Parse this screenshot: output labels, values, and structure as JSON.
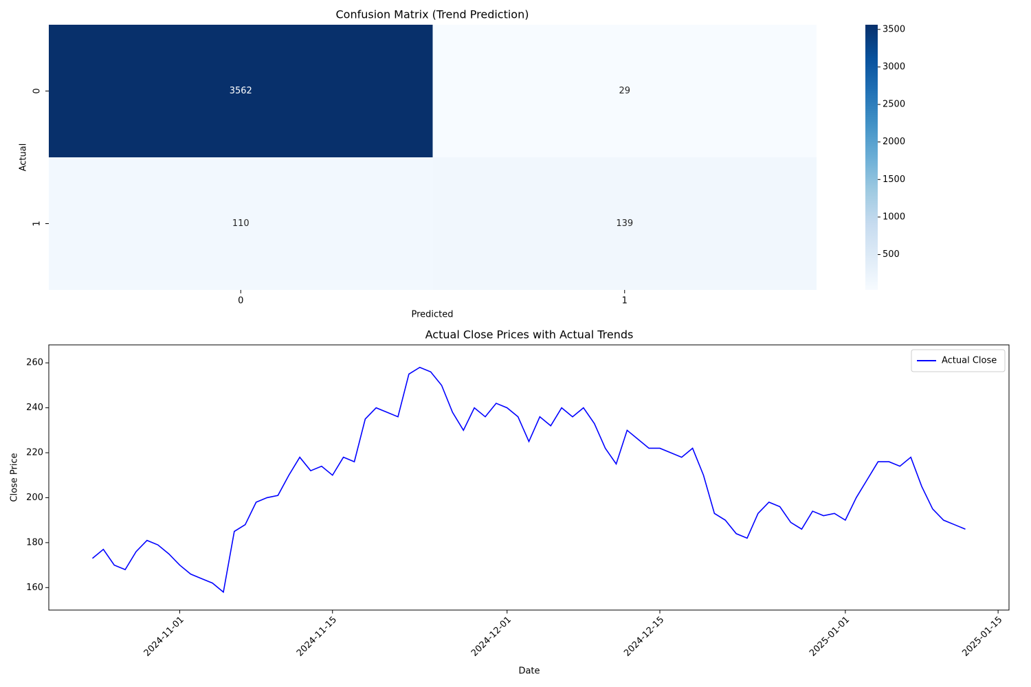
{
  "chart_data": [
    {
      "type": "heatmap",
      "title": "Confusion Matrix (Trend Prediction)",
      "xlabel": "Predicted",
      "ylabel": "Actual",
      "x_categories": [
        "0",
        "1"
      ],
      "y_categories": [
        "0",
        "1"
      ],
      "values": [
        [
          3562,
          29
        ],
        [
          110,
          139
        ]
      ],
      "colormap": "Blues",
      "clim": [
        29,
        3562
      ],
      "cticks": [
        500,
        1000,
        1500,
        2000,
        2500,
        3000,
        3500
      ]
    },
    {
      "type": "line",
      "title": "Actual Close Prices with Actual Trends",
      "xlabel": "Date",
      "ylabel": "Close Price",
      "x": [
        "2024-10-24",
        "2024-10-25",
        "2024-10-26",
        "2024-10-27",
        "2024-10-28",
        "2024-10-29",
        "2024-10-30",
        "2024-10-31",
        "2024-11-01",
        "2024-11-02",
        "2024-11-03",
        "2024-11-04",
        "2024-11-05",
        "2024-11-06",
        "2024-11-07",
        "2024-11-08",
        "2024-11-09",
        "2024-11-10",
        "2024-11-11",
        "2024-11-12",
        "2024-11-13",
        "2024-11-14",
        "2024-11-15",
        "2024-11-16",
        "2024-11-17",
        "2024-11-18",
        "2024-11-19",
        "2024-11-20",
        "2024-11-21",
        "2024-11-22",
        "2024-11-23",
        "2024-11-24",
        "2024-11-25",
        "2024-11-26",
        "2024-11-27",
        "2024-11-28",
        "2024-11-29",
        "2024-11-30",
        "2024-12-01",
        "2024-12-02",
        "2024-12-03",
        "2024-12-04",
        "2024-12-05",
        "2024-12-06",
        "2024-12-07",
        "2024-12-08",
        "2024-12-09",
        "2024-12-10",
        "2024-12-11",
        "2024-12-12",
        "2024-12-13",
        "2024-12-14",
        "2024-12-15",
        "2024-12-16",
        "2024-12-17",
        "2024-12-18",
        "2024-12-19",
        "2024-12-20",
        "2024-12-21",
        "2024-12-22",
        "2024-12-23",
        "2024-12-24",
        "2024-12-25",
        "2024-12-26",
        "2024-12-27",
        "2024-12-28",
        "2024-12-29",
        "2024-12-30",
        "2024-12-31",
        "2025-01-01",
        "2025-01-02",
        "2025-01-03",
        "2025-01-04",
        "2025-01-05",
        "2025-01-06",
        "2025-01-07",
        "2025-01-08",
        "2025-01-09",
        "2025-01-10",
        "2025-01-11",
        "2025-01-12"
      ],
      "series": [
        {
          "name": "Actual Close",
          "color": "#0000ff",
          "values": [
            173,
            177,
            170,
            168,
            176,
            181,
            179,
            175,
            170,
            166,
            164,
            162,
            158,
            185,
            188,
            198,
            200,
            201,
            210,
            218,
            212,
            214,
            210,
            218,
            216,
            235,
            240,
            238,
            236,
            255,
            258,
            256,
            250,
            238,
            230,
            240,
            236,
            242,
            240,
            236,
            225,
            236,
            232,
            240,
            236,
            240,
            233,
            222,
            215,
            230,
            226,
            222,
            222,
            220,
            218,
            222,
            210,
            193,
            190,
            184,
            182,
            193,
            198,
            196,
            189,
            186,
            194,
            192,
            193,
            190,
            200,
            208,
            216,
            216,
            214,
            218,
            205,
            195,
            190,
            188,
            186
          ]
        }
      ],
      "xlim": [
        "2024-10-20",
        "2025-01-16"
      ],
      "xticks": [
        "2024-11-01",
        "2024-11-15",
        "2024-12-01",
        "2024-12-15",
        "2025-01-01",
        "2025-01-15"
      ],
      "ylim": [
        150,
        268
      ],
      "yticks": [
        160,
        180,
        200,
        220,
        240,
        260
      ],
      "legend": "upper right"
    }
  ]
}
